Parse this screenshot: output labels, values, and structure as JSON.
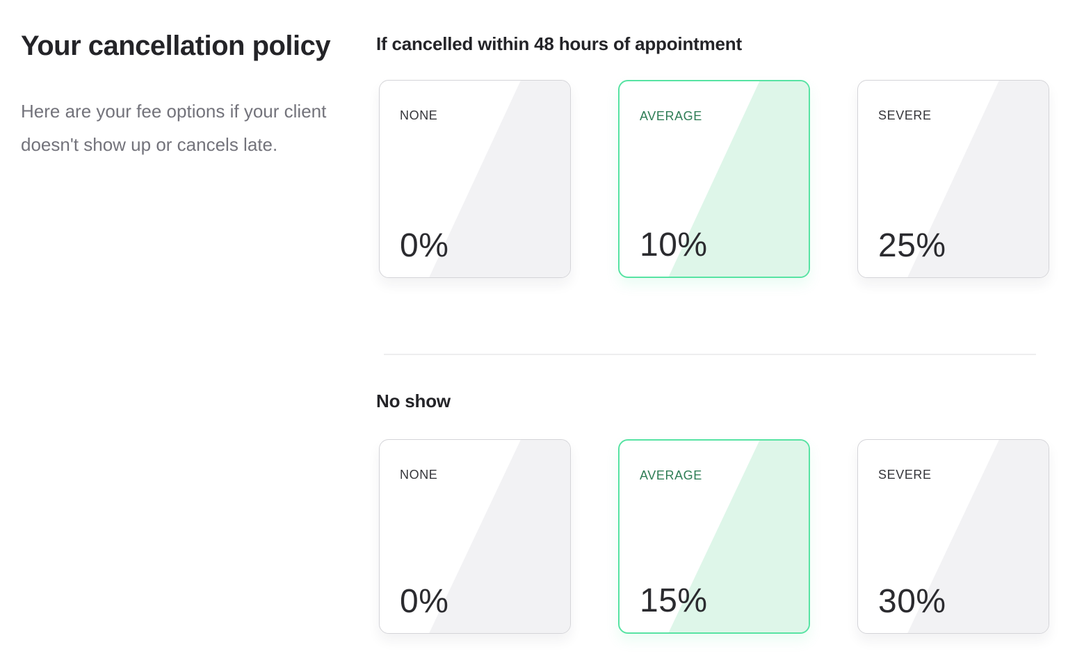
{
  "left_panel": {
    "title": "Your cancellation policy",
    "description": "Here are your fee options if your client doesn't show up or cancels late."
  },
  "colors": {
    "accent_green_border": "#57e3a3",
    "accent_green_fill": "#def6e9",
    "accent_green_text": "#2e7d55",
    "neutral_fill": "#f2f2f4",
    "neutral_border": "#d4d4d8",
    "heading_text": "#242428",
    "muted_text": "#73737b"
  },
  "sections": [
    {
      "heading": "If cancelled within 48 hours of appointment",
      "options": [
        {
          "label": "NONE",
          "value": "0%",
          "selected": false
        },
        {
          "label": "AVERAGE",
          "value": "10%",
          "selected": true
        },
        {
          "label": "SEVERE",
          "value": "25%",
          "selected": false
        }
      ]
    },
    {
      "heading": "No show",
      "options": [
        {
          "label": "NONE",
          "value": "0%",
          "selected": false
        },
        {
          "label": "AVERAGE",
          "value": "15%",
          "selected": true
        },
        {
          "label": "SEVERE",
          "value": "30%",
          "selected": false
        }
      ]
    }
  ]
}
